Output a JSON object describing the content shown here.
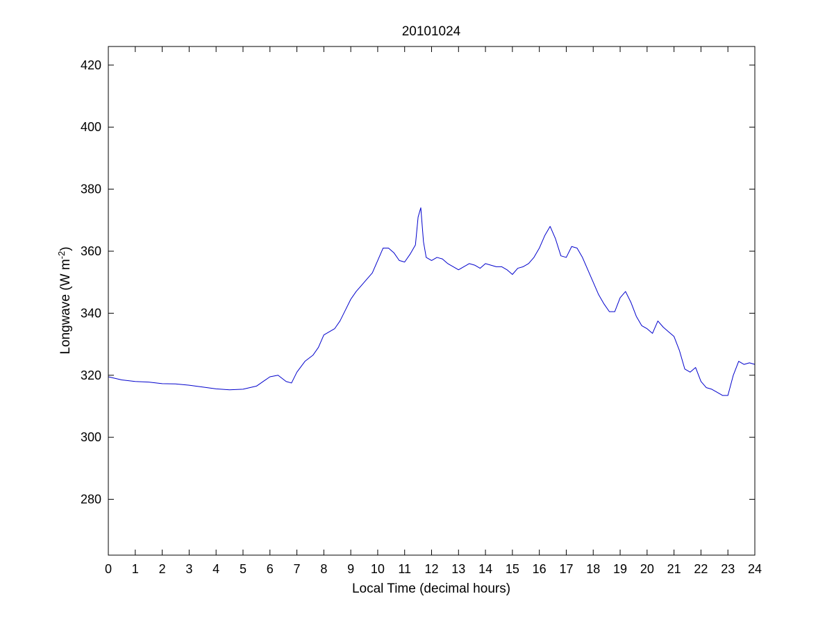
{
  "chart_data": {
    "type": "line",
    "title": "20101024",
    "xlabel": "Local Time (decimal hours)",
    "ylabel": "Longwave (W m",
    "ylabel_sup": "-2",
    "ylabel_close": ")",
    "xlim": [
      0,
      24
    ],
    "ylim": [
      262,
      426
    ],
    "xticks": [
      0,
      1,
      2,
      3,
      4,
      5,
      6,
      7,
      8,
      9,
      10,
      11,
      12,
      13,
      14,
      15,
      16,
      17,
      18,
      19,
      20,
      21,
      22,
      23,
      24
    ],
    "yticks": [
      280,
      300,
      320,
      340,
      360,
      380,
      400,
      420
    ],
    "xtick_labels": [
      "0",
      "1",
      "2",
      "3",
      "4",
      "5",
      "6",
      "7",
      "8",
      "9",
      "10",
      "11",
      "12",
      "13",
      "14",
      "15",
      "16",
      "17",
      "18",
      "19",
      "20",
      "21",
      "22",
      "23",
      "24"
    ],
    "ytick_labels": [
      "280",
      "300",
      "320",
      "340",
      "360",
      "380",
      "400",
      "420"
    ],
    "grid": false,
    "line_color": "#0000cc",
    "series": [
      {
        "x": [
          0.0,
          0.5,
          1.0,
          1.5,
          2.0,
          2.5,
          3.0,
          3.5,
          4.0,
          4.5,
          5.0,
          5.5,
          6.0,
          6.3,
          6.6,
          6.8,
          7.0,
          7.3,
          7.6,
          7.8,
          8.0,
          8.2,
          8.4,
          8.6,
          8.8,
          9.0,
          9.2,
          9.4,
          9.6,
          9.8,
          10.0,
          10.2,
          10.4,
          10.6,
          10.8,
          11.0,
          11.2,
          11.4,
          11.5,
          11.6,
          11.7,
          11.8,
          12.0,
          12.2,
          12.4,
          12.6,
          12.8,
          13.0,
          13.2,
          13.4,
          13.6,
          13.8,
          14.0,
          14.2,
          14.4,
          14.6,
          14.8,
          15.0,
          15.2,
          15.4,
          15.6,
          15.8,
          16.0,
          16.2,
          16.4,
          16.6,
          16.8,
          17.0,
          17.2,
          17.4,
          17.6,
          17.8,
          18.0,
          18.2,
          18.4,
          18.6,
          18.8,
          19.0,
          19.2,
          19.4,
          19.6,
          19.8,
          20.0,
          20.2,
          20.4,
          20.6,
          20.8,
          21.0,
          21.2,
          21.4,
          21.6,
          21.8,
          22.0,
          22.2,
          22.4,
          22.6,
          22.8,
          23.0,
          23.2,
          23.4,
          23.6,
          23.8,
          24.0
        ],
        "y": [
          319.5,
          318.5,
          318.0,
          317.8,
          317.3,
          317.2,
          316.8,
          316.2,
          315.6,
          315.3,
          315.5,
          316.5,
          319.5,
          320.0,
          318.0,
          317.5,
          321.0,
          324.5,
          326.5,
          329.0,
          333.0,
          334.0,
          335.0,
          337.5,
          341.0,
          344.5,
          347.0,
          349.0,
          351.0,
          353.0,
          357.0,
          361.0,
          361.0,
          359.5,
          357.0,
          356.5,
          359.0,
          362.0,
          371.0,
          374.0,
          363.0,
          358.0,
          357.0,
          358.0,
          357.5,
          356.0,
          355.0,
          354.0,
          355.0,
          356.0,
          355.5,
          354.5,
          356.0,
          355.5,
          355.0,
          355.0,
          354.0,
          352.5,
          354.5,
          355.0,
          356.0,
          358.0,
          361.0,
          365.0,
          368.0,
          364.0,
          358.5,
          358.0,
          361.5,
          361.0,
          358.0,
          354.0,
          350.0,
          346.0,
          343.0,
          340.5,
          340.5,
          345.0,
          347.0,
          343.5,
          339.0,
          336.0,
          335.0,
          333.5,
          337.5,
          335.5,
          334.0,
          332.5,
          328.0,
          322.0,
          321.0,
          322.5,
          318.0,
          316.0,
          315.5,
          314.5,
          313.5,
          313.5,
          320.0,
          324.5,
          323.5,
          324.0,
          323.5
        ]
      }
    ]
  }
}
